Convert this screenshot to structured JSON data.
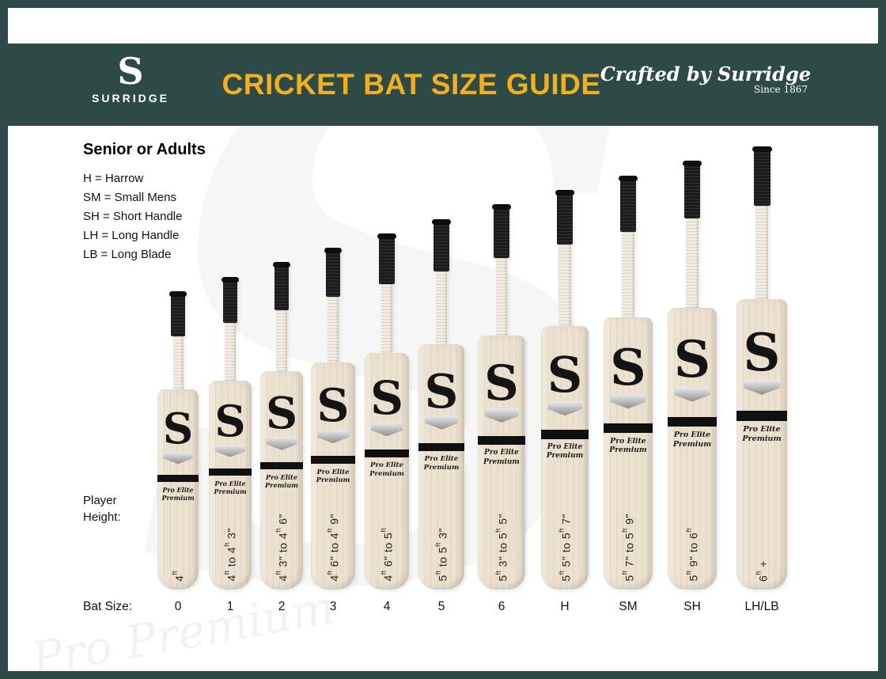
{
  "header": {
    "brand": "SURRIDGE",
    "title": "CRICKET BAT SIZE GUIDE",
    "crafted": "Crafted by Surridge",
    "since": "Since 1867"
  },
  "legend": {
    "heading": "Senior or Adults",
    "items": [
      "H = Harrow",
      "SM = Small Mens",
      "SH = Short Handle",
      "LH = Long Handle",
      "LB = Long Blade"
    ]
  },
  "row_labels": {
    "player_height": "Player\nHeight:",
    "bat_size": "Bat Size:"
  },
  "bat_model": {
    "logo_letter": "S",
    "line1": "Pro Elite",
    "line2": "Premium"
  },
  "bats": [
    {
      "bat_size": "0",
      "player_height": "4ft"
    },
    {
      "bat_size": "1",
      "player_height": "4ft to 4ft 3\""
    },
    {
      "bat_size": "2",
      "player_height": "4ft 3\" to 4ft 6\""
    },
    {
      "bat_size": "3",
      "player_height": "4ft 6\" to 4ft 9\""
    },
    {
      "bat_size": "4",
      "player_height": "4ft 6\" to 5ft"
    },
    {
      "bat_size": "5",
      "player_height": "5ft to 5ft 3\""
    },
    {
      "bat_size": "6",
      "player_height": "5ft 3\" to 5ft 5\""
    },
    {
      "bat_size": "H",
      "player_height": "5ft 5\" to 5ft 7\""
    },
    {
      "bat_size": "SM",
      "player_height": "5ft 7\" to 5ft 9\""
    },
    {
      "bat_size": "SH",
      "player_height": "5ft 9\" to 6ft"
    },
    {
      "bat_size": "LH/LB",
      "player_height": "6ft +"
    }
  ],
  "watermark": {
    "letter": "S",
    "script": "Pro Premium"
  },
  "colors": {
    "header_background": "#2e4a47",
    "title_accent": "#f2b01e",
    "bat_wood": "#ece1cf",
    "grip_black": "#1b1b1b"
  }
}
